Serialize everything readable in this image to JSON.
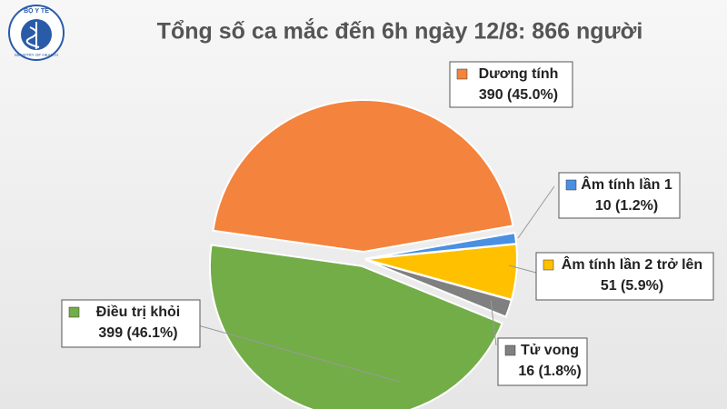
{
  "logo": {
    "top": "BỘ Y TẾ",
    "bottom": "MINISTRY OF HEALTH"
  },
  "chart_data": {
    "type": "pie",
    "title": "Tổng số ca mắc đến 6h ngày 12/8: 866 người",
    "categories": [
      "Dương tính",
      "Âm tính lần 1",
      "Âm tính lần 2 trở lên",
      "Tử vong",
      "Điều trị khỏi"
    ],
    "values": [
      390,
      10,
      51,
      16,
      399
    ],
    "value_labels": [
      "390 (45.0%)",
      "10 (1.2%)",
      "51 (5.9%)",
      "16 (1.8%)",
      "399 (46.1%)"
    ],
    "colors": [
      "#f4833d",
      "#4a90e2",
      "#ffc000",
      "#808080",
      "#72ad47"
    ]
  }
}
